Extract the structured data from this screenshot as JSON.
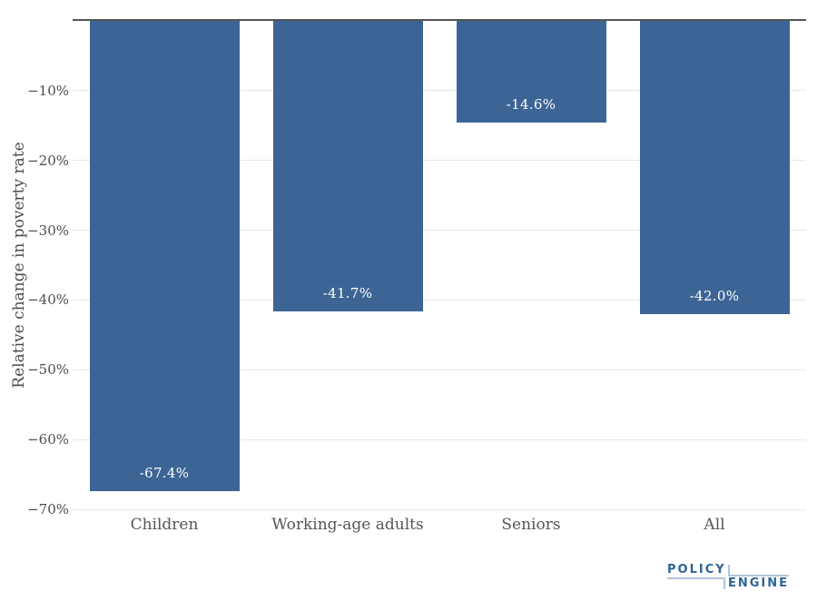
{
  "chart_data": {
    "type": "bar",
    "categories": [
      "Children",
      "Working-age adults",
      "Seniors",
      "All"
    ],
    "values": [
      -67.4,
      -41.7,
      -14.6,
      -42.0
    ],
    "value_labels": [
      "-67.4%",
      "-41.7%",
      "-14.6%",
      "-42.0%"
    ],
    "title": "",
    "xlabel": "",
    "ylabel": "Relative change in poverty rate",
    "ylim": [
      -70,
      0
    ],
    "yticks": [
      -10,
      -20,
      -30,
      -40,
      -50,
      -60,
      -70
    ],
    "ytick_labels": [
      "−10%",
      "−20%",
      "−30%",
      "−40%",
      "−50%",
      "−60%",
      "−70%"
    ],
    "grid": true,
    "legend": "none",
    "bar_color": "#3C6595",
    "value_label_color": "#ffffff",
    "axis_line_color": "#555555",
    "gridline_color": "#e8e8e8",
    "tick_text_color": "#4d4d4d"
  },
  "branding": {
    "logo_top": "POLICY",
    "logo_bottom": "ENGINE",
    "logo_text_color": "#2C6496",
    "logo_line_color": "#b3c4d9"
  }
}
